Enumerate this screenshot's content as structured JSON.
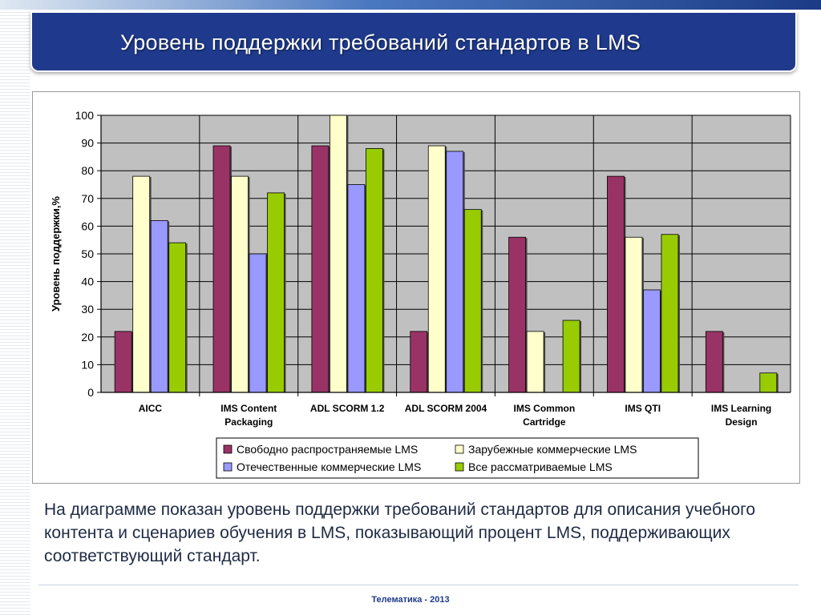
{
  "slide": {
    "title": "Уровень поддержки требований стандартов в LMS",
    "caption": "На диаграмме показан уровень поддержки требований стандартов для описания учебного контента и сценариев обучения в LMS, показывающий процент LMS, поддерживающих соответствующий стандарт.",
    "footer": "Телематика - 2013"
  },
  "colors": {
    "title_bar": "#1f3a8c",
    "plot_bg": "#c0c0c0"
  },
  "chart_data": {
    "type": "bar",
    "title": "",
    "xlabel": "",
    "ylabel": "Уровень поддержки,%",
    "ylim": [
      0,
      100
    ],
    "yticks": [
      0,
      10,
      20,
      30,
      40,
      50,
      60,
      70,
      80,
      90,
      100
    ],
    "grid": "horizontal and vertical",
    "legend_position": "bottom",
    "categories": [
      [
        "AICC"
      ],
      [
        "IMS Content",
        "Packaging"
      ],
      [
        "ADL SCORM 1.2"
      ],
      [
        "ADL SCORM 2004"
      ],
      [
        "IMS Common",
        "Cartridge"
      ],
      [
        "IMS QTI"
      ],
      [
        "IMS Learning",
        "Design"
      ]
    ],
    "series": [
      {
        "name": "Свободно распространяемые LMS",
        "color": "#993366",
        "values": [
          22,
          89,
          89,
          22,
          56,
          78,
          22
        ]
      },
      {
        "name": "Зарубежные коммерческие LMS",
        "color": "#ffffcc",
        "values": [
          78,
          78,
          100,
          89,
          22,
          56,
          0
        ]
      },
      {
        "name": "Отечественные коммерческие LMS",
        "color": "#9999ff",
        "values": [
          62,
          50,
          75,
          87,
          0,
          37,
          0
        ]
      },
      {
        "name": "Все рассматриваемые LMS",
        "color": "#99cc00",
        "values": [
          54,
          72,
          88,
          66,
          26,
          57,
          7
        ]
      }
    ]
  }
}
